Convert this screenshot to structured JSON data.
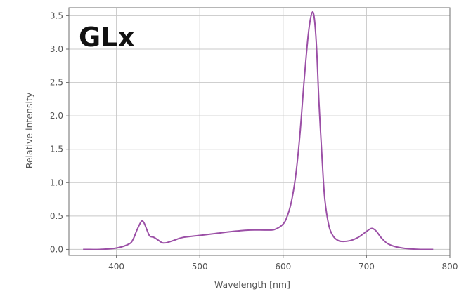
{
  "chart_data": {
    "type": "line",
    "title": "",
    "annotation": "GLx",
    "xlabel": "Wavelength [nm]",
    "ylabel": "Relative intensity",
    "xlim": [
      343,
      800
    ],
    "ylim": [
      -0.09,
      3.62
    ],
    "xticks": [
      400,
      500,
      600,
      700,
      800
    ],
    "yticks": [
      0.0,
      0.5,
      1.0,
      1.5,
      2.0,
      2.5,
      3.0,
      3.5
    ],
    "xtick_labels": [
      "400",
      "500",
      "600",
      "700",
      "800"
    ],
    "ytick_labels": [
      "0.0",
      "0.5",
      "1.0",
      "1.5",
      "2.0",
      "2.5",
      "3.0",
      "3.5"
    ],
    "grid": true,
    "line_color": "#9b4fa6",
    "series": [
      {
        "x": [
          360,
          380,
          400,
          415,
          420,
          425,
          430,
          433,
          437,
          440,
          445,
          450,
          455,
          460,
          470,
          480,
          500,
          520,
          540,
          560,
          580,
          590,
          600,
          605,
          610,
          615,
          620,
          625,
          630,
          634,
          637,
          640,
          643,
          647,
          650,
          655,
          660,
          665,
          670,
          680,
          690,
          700,
          705,
          708,
          712,
          718,
          725,
          735,
          750,
          765,
          780
        ],
        "y": [
          0.0,
          0.0,
          0.02,
          0.08,
          0.15,
          0.3,
          0.42,
          0.4,
          0.28,
          0.2,
          0.18,
          0.14,
          0.1,
          0.1,
          0.14,
          0.18,
          0.21,
          0.24,
          0.27,
          0.29,
          0.29,
          0.3,
          0.38,
          0.5,
          0.72,
          1.1,
          1.7,
          2.5,
          3.2,
          3.52,
          3.5,
          3.05,
          2.2,
          1.3,
          0.75,
          0.35,
          0.2,
          0.14,
          0.12,
          0.13,
          0.18,
          0.27,
          0.31,
          0.31,
          0.27,
          0.17,
          0.09,
          0.04,
          0.01,
          0.0,
          0.0
        ]
      }
    ]
  }
}
